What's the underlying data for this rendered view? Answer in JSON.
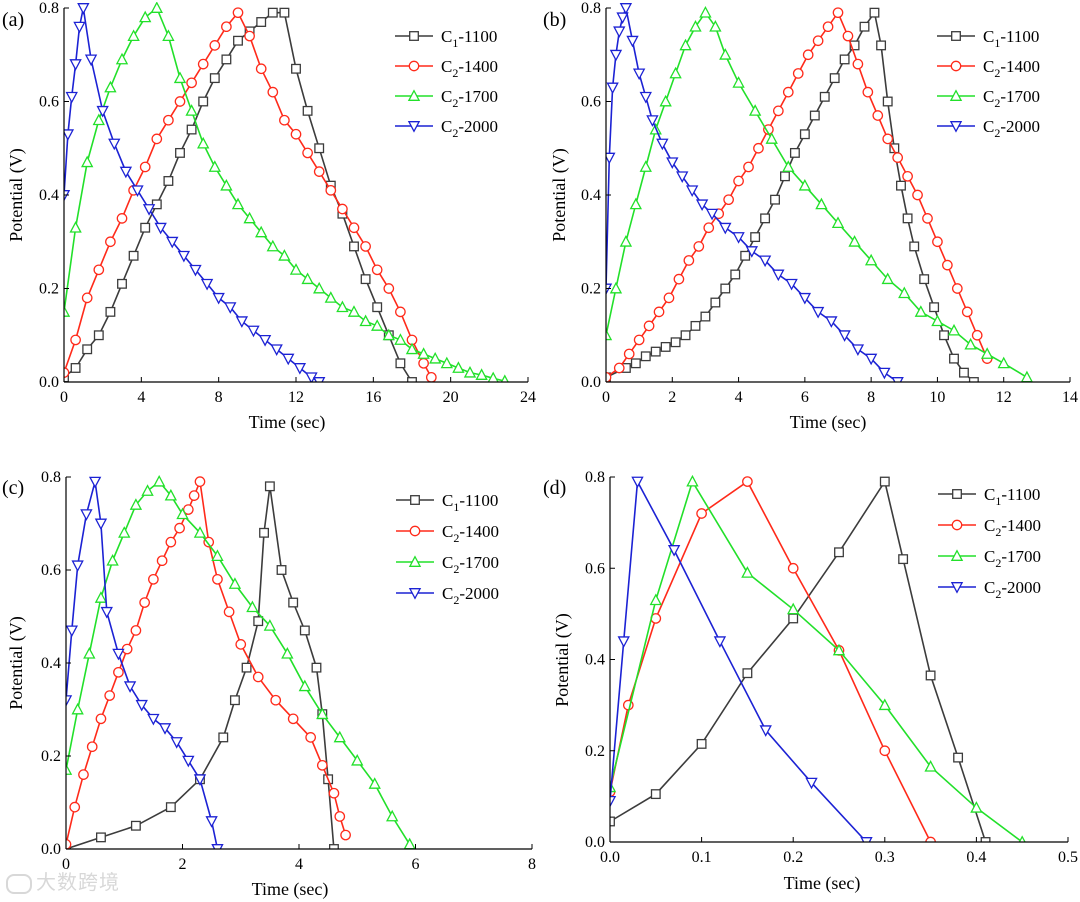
{
  "watermark": "大数跨境",
  "legend_labels": [
    {
      "main": "C",
      "sub": "1",
      "suffix": "-1100"
    },
    {
      "main": "C",
      "sub": "2",
      "suffix": "-1400"
    },
    {
      "main": "C",
      "sub": "2",
      "suffix": "-1700"
    },
    {
      "main": "C",
      "sub": "2",
      "suffix": "-2000"
    }
  ],
  "series_style": [
    {
      "color": "#3c3c3c",
      "marker": "square"
    },
    {
      "color": "#ff2a1a",
      "marker": "circle"
    },
    {
      "color": "#22e02a",
      "marker": "triangle-up"
    },
    {
      "color": "#1c22d4",
      "marker": "triangle-down"
    }
  ],
  "chart_data": [
    {
      "type": "line",
      "panel_label": "(a)",
      "xlabel": "Time (sec)",
      "ylabel": "Potential (V)",
      "xlim": [
        0,
        24
      ],
      "ylim": [
        0,
        0.8
      ],
      "xticks": [
        0,
        4,
        8,
        12,
        16,
        20,
        24
      ],
      "yticks": [
        0.0,
        0.2,
        0.4,
        0.6,
        0.8
      ],
      "xtick_labels": [
        "0",
        "4",
        "8",
        "12",
        "16",
        "20",
        "24"
      ],
      "ytick_labels": [
        "0.0",
        "0.2",
        "0.4",
        "0.6",
        "0.8"
      ],
      "series": [
        {
          "name": "C1-1100",
          "x": [
            0,
            0.6,
            1.2,
            1.8,
            2.4,
            3.0,
            3.6,
            4.2,
            4.8,
            5.4,
            6.0,
            6.6,
            7.2,
            7.8,
            8.4,
            9.0,
            9.6,
            10.2,
            10.8,
            11.4,
            12.0,
            12.6,
            13.2,
            13.8,
            14.4,
            15.0,
            15.6,
            16.2,
            16.8,
            17.4,
            18.0
          ],
          "y": [
            0.01,
            0.03,
            0.07,
            0.1,
            0.15,
            0.21,
            0.27,
            0.33,
            0.38,
            0.43,
            0.49,
            0.54,
            0.6,
            0.65,
            0.69,
            0.73,
            0.75,
            0.77,
            0.79,
            0.79,
            0.67,
            0.58,
            0.5,
            0.42,
            0.36,
            0.29,
            0.22,
            0.16,
            0.1,
            0.04,
            0.0
          ]
        },
        {
          "name": "C2-1400",
          "x": [
            0,
            0.6,
            1.2,
            1.8,
            2.4,
            3.0,
            3.6,
            4.2,
            4.8,
            5.4,
            6.0,
            6.6,
            7.2,
            7.8,
            8.4,
            9.0,
            9.6,
            10.2,
            10.8,
            11.4,
            12.0,
            12.6,
            13.2,
            13.8,
            14.4,
            15.0,
            15.6,
            16.2,
            16.8,
            17.4,
            18.0,
            18.6,
            19.0
          ],
          "y": [
            0.02,
            0.09,
            0.18,
            0.24,
            0.3,
            0.35,
            0.41,
            0.46,
            0.52,
            0.56,
            0.6,
            0.64,
            0.68,
            0.72,
            0.76,
            0.79,
            0.74,
            0.67,
            0.62,
            0.56,
            0.53,
            0.49,
            0.45,
            0.41,
            0.37,
            0.33,
            0.29,
            0.24,
            0.2,
            0.15,
            0.09,
            0.04,
            0.01
          ]
        },
        {
          "name": "C2-1700",
          "x": [
            0,
            0.6,
            1.2,
            1.8,
            2.4,
            3.0,
            3.6,
            4.2,
            4.8,
            5.4,
            6.0,
            6.6,
            7.2,
            7.8,
            8.4,
            9.0,
            9.6,
            10.2,
            10.8,
            11.4,
            12.0,
            12.6,
            13.2,
            13.8,
            14.4,
            15.0,
            15.6,
            16.2,
            16.8,
            17.4,
            18.0,
            18.6,
            19.2,
            19.8,
            20.4,
            21.0,
            21.6,
            22.2,
            22.8
          ],
          "y": [
            0.15,
            0.33,
            0.47,
            0.56,
            0.63,
            0.69,
            0.74,
            0.78,
            0.8,
            0.74,
            0.65,
            0.58,
            0.51,
            0.46,
            0.42,
            0.38,
            0.35,
            0.32,
            0.29,
            0.27,
            0.24,
            0.22,
            0.2,
            0.18,
            0.16,
            0.15,
            0.13,
            0.12,
            0.1,
            0.09,
            0.07,
            0.06,
            0.05,
            0.04,
            0.03,
            0.02,
            0.015,
            0.008,
            0.002
          ]
        },
        {
          "name": "C2-2000",
          "x": [
            0,
            0.2,
            0.4,
            0.6,
            0.8,
            1.0,
            1.4,
            2.0,
            2.6,
            3.2,
            3.8,
            4.4,
            5.0,
            5.6,
            6.2,
            6.8,
            7.4,
            8.0,
            8.6,
            9.2,
            9.8,
            10.4,
            11.0,
            11.6,
            12.2,
            12.8,
            13.2
          ],
          "y": [
            0.4,
            0.53,
            0.61,
            0.68,
            0.76,
            0.8,
            0.69,
            0.58,
            0.51,
            0.45,
            0.41,
            0.37,
            0.33,
            0.3,
            0.27,
            0.24,
            0.21,
            0.18,
            0.16,
            0.13,
            0.11,
            0.09,
            0.07,
            0.05,
            0.03,
            0.01,
            0.0
          ]
        }
      ]
    },
    {
      "type": "line",
      "panel_label": "(b)",
      "xlabel": "Time (sec)",
      "ylabel": "Potential (V)",
      "xlim": [
        0,
        14
      ],
      "ylim": [
        0,
        0.8
      ],
      "xticks": [
        0,
        2,
        4,
        6,
        8,
        10,
        12,
        14
      ],
      "yticks": [
        0.0,
        0.2,
        0.4,
        0.6,
        0.8
      ],
      "xtick_labels": [
        "0",
        "2",
        "4",
        "6",
        "8",
        "10",
        "12",
        "14"
      ],
      "ytick_labels": [
        "0.0",
        "0.2",
        "0.4",
        "0.6",
        "0.8"
      ],
      "series": [
        {
          "name": "C1-1100",
          "x": [
            0,
            0.6,
            0.9,
            1.2,
            1.5,
            1.8,
            2.1,
            2.4,
            2.7,
            3.0,
            3.3,
            3.6,
            3.9,
            4.2,
            4.5,
            4.8,
            5.1,
            5.4,
            5.7,
            6.0,
            6.3,
            6.6,
            6.9,
            7.2,
            7.5,
            7.8,
            8.1,
            8.3,
            8.5,
            8.7,
            8.9,
            9.1,
            9.3,
            9.6,
            9.9,
            10.2,
            10.5,
            10.8,
            11.1
          ],
          "y": [
            0.01,
            0.03,
            0.04,
            0.055,
            0.065,
            0.075,
            0.085,
            0.1,
            0.12,
            0.14,
            0.17,
            0.2,
            0.23,
            0.27,
            0.31,
            0.35,
            0.39,
            0.44,
            0.49,
            0.53,
            0.57,
            0.61,
            0.65,
            0.69,
            0.72,
            0.76,
            0.79,
            0.72,
            0.6,
            0.5,
            0.42,
            0.35,
            0.29,
            0.22,
            0.16,
            0.1,
            0.05,
            0.02,
            0.0
          ]
        },
        {
          "name": "C2-1400",
          "x": [
            0,
            0.4,
            0.7,
            1.0,
            1.3,
            1.6,
            1.9,
            2.2,
            2.5,
            2.8,
            3.1,
            3.4,
            3.7,
            4.0,
            4.3,
            4.6,
            4.9,
            5.2,
            5.5,
            5.8,
            6.1,
            6.4,
            6.7,
            7.0,
            7.3,
            7.6,
            7.9,
            8.2,
            8.5,
            8.8,
            9.1,
            9.4,
            9.7,
            10.0,
            10.3,
            10.6,
            10.9,
            11.2,
            11.5
          ],
          "y": [
            0.01,
            0.03,
            0.06,
            0.09,
            0.12,
            0.15,
            0.18,
            0.22,
            0.26,
            0.29,
            0.33,
            0.36,
            0.39,
            0.43,
            0.46,
            0.5,
            0.54,
            0.58,
            0.62,
            0.66,
            0.7,
            0.73,
            0.76,
            0.79,
            0.74,
            0.68,
            0.62,
            0.57,
            0.52,
            0.48,
            0.44,
            0.4,
            0.35,
            0.3,
            0.25,
            0.2,
            0.15,
            0.1,
            0.05
          ]
        },
        {
          "name": "C2-1700",
          "x": [
            0,
            0.3,
            0.6,
            0.9,
            1.2,
            1.5,
            1.8,
            2.1,
            2.4,
            2.7,
            3.0,
            3.3,
            3.6,
            4.0,
            4.5,
            5.0,
            5.5,
            6.0,
            6.5,
            7.0,
            7.5,
            8.0,
            8.5,
            9.0,
            9.5,
            10.0,
            10.5,
            11.0,
            11.5,
            12.0,
            12.7
          ],
          "y": [
            0.1,
            0.2,
            0.3,
            0.38,
            0.46,
            0.54,
            0.6,
            0.66,
            0.72,
            0.76,
            0.79,
            0.76,
            0.7,
            0.64,
            0.58,
            0.52,
            0.46,
            0.42,
            0.38,
            0.34,
            0.3,
            0.26,
            0.22,
            0.19,
            0.15,
            0.13,
            0.11,
            0.08,
            0.06,
            0.04,
            0.01
          ]
        },
        {
          "name": "C2-2000",
          "x": [
            0,
            0.1,
            0.2,
            0.3,
            0.4,
            0.5,
            0.6,
            0.8,
            1.0,
            1.2,
            1.4,
            1.7,
            2.0,
            2.3,
            2.6,
            2.9,
            3.2,
            3.6,
            4.0,
            4.4,
            4.8,
            5.2,
            5.6,
            6.0,
            6.4,
            6.8,
            7.2,
            7.6,
            8.0,
            8.4,
            8.8
          ],
          "y": [
            0.2,
            0.48,
            0.63,
            0.7,
            0.75,
            0.78,
            0.8,
            0.73,
            0.66,
            0.61,
            0.56,
            0.51,
            0.47,
            0.44,
            0.41,
            0.38,
            0.36,
            0.33,
            0.31,
            0.28,
            0.26,
            0.23,
            0.21,
            0.18,
            0.15,
            0.13,
            0.1,
            0.07,
            0.05,
            0.02,
            0.0
          ]
        }
      ]
    },
    {
      "type": "line",
      "panel_label": "(c)",
      "xlabel": "Time (sec)",
      "ylabel": "Potential (V)",
      "xlim": [
        0,
        8
      ],
      "ylim": [
        0,
        0.8
      ],
      "xticks": [
        0,
        2,
        4,
        6,
        8
      ],
      "yticks": [
        0.0,
        0.2,
        0.4,
        0.6,
        0.8
      ],
      "xtick_labels": [
        "0",
        "2",
        "4",
        "6",
        "8"
      ],
      "ytick_labels": [
        "0.0",
        "0.2",
        "0.4",
        "0.6",
        "0.8"
      ],
      "series": [
        {
          "name": "C1-1100",
          "x": [
            0,
            0.6,
            1.2,
            1.8,
            2.3,
            2.7,
            2.9,
            3.1,
            3.3,
            3.4,
            3.5,
            3.7,
            3.9,
            4.1,
            4.3,
            4.4,
            4.5,
            4.6
          ],
          "y": [
            0.0,
            0.025,
            0.05,
            0.09,
            0.15,
            0.24,
            0.32,
            0.39,
            0.49,
            0.68,
            0.78,
            0.6,
            0.53,
            0.47,
            0.39,
            0.29,
            0.15,
            0.0
          ]
        },
        {
          "name": "C2-1400",
          "x": [
            0,
            0.15,
            0.3,
            0.45,
            0.6,
            0.75,
            0.9,
            1.05,
            1.2,
            1.35,
            1.5,
            1.65,
            1.8,
            1.95,
            2.1,
            2.2,
            2.3,
            2.45,
            2.6,
            2.8,
            3.0,
            3.3,
            3.6,
            3.9,
            4.2,
            4.4,
            4.6,
            4.7,
            4.8
          ],
          "y": [
            0.01,
            0.09,
            0.16,
            0.22,
            0.28,
            0.33,
            0.38,
            0.43,
            0.47,
            0.53,
            0.58,
            0.62,
            0.66,
            0.69,
            0.73,
            0.76,
            0.79,
            0.66,
            0.58,
            0.51,
            0.44,
            0.37,
            0.32,
            0.28,
            0.24,
            0.18,
            0.12,
            0.07,
            0.03
          ]
        },
        {
          "name": "C2-1700",
          "x": [
            0,
            0.2,
            0.4,
            0.6,
            0.8,
            1.0,
            1.2,
            1.4,
            1.6,
            1.8,
            2.0,
            2.3,
            2.6,
            2.9,
            3.2,
            3.5,
            3.8,
            4.1,
            4.4,
            4.7,
            5.0,
            5.3,
            5.6,
            5.9
          ],
          "y": [
            0.17,
            0.3,
            0.42,
            0.54,
            0.62,
            0.68,
            0.74,
            0.77,
            0.79,
            0.76,
            0.72,
            0.68,
            0.63,
            0.57,
            0.52,
            0.48,
            0.42,
            0.35,
            0.29,
            0.24,
            0.19,
            0.14,
            0.07,
            0.01
          ]
        },
        {
          "name": "C2-2000",
          "x": [
            0,
            0.1,
            0.2,
            0.35,
            0.5,
            0.6,
            0.7,
            0.9,
            1.1,
            1.3,
            1.5,
            1.7,
            1.9,
            2.1,
            2.3,
            2.5,
            2.6
          ],
          "y": [
            0.32,
            0.47,
            0.61,
            0.72,
            0.79,
            0.7,
            0.51,
            0.42,
            0.35,
            0.31,
            0.28,
            0.26,
            0.23,
            0.19,
            0.15,
            0.06,
            0.0
          ]
        }
      ]
    },
    {
      "type": "line",
      "panel_label": "(d)",
      "xlabel": "Time (sec)",
      "ylabel": "Potential (V)",
      "xlim": [
        0,
        0.5
      ],
      "ylim": [
        0,
        0.8
      ],
      "xticks": [
        0.0,
        0.1,
        0.2,
        0.3,
        0.4,
        0.5
      ],
      "yticks": [
        0.0,
        0.2,
        0.4,
        0.6,
        0.8
      ],
      "xtick_labels": [
        "0.0",
        "0.1",
        "0.2",
        "0.3",
        "0.4",
        "0.5"
      ],
      "ytick_labels": [
        "0.0",
        "0.2",
        "0.4",
        "0.6",
        "0.8"
      ],
      "series": [
        {
          "name": "C1-1100",
          "x": [
            0,
            0.05,
            0.1,
            0.15,
            0.2,
            0.25,
            0.3,
            0.32,
            0.35,
            0.38,
            0.41
          ],
          "y": [
            0.045,
            0.105,
            0.215,
            0.37,
            0.49,
            0.635,
            0.79,
            0.62,
            0.365,
            0.185,
            0.0
          ]
        },
        {
          "name": "C2-1400",
          "x": [
            0,
            0.02,
            0.05,
            0.1,
            0.15,
            0.2,
            0.25,
            0.3,
            0.35
          ],
          "y": [
            0.11,
            0.3,
            0.49,
            0.72,
            0.79,
            0.6,
            0.42,
            0.2,
            0.0
          ]
        },
        {
          "name": "C2-1700",
          "x": [
            0,
            0.05,
            0.09,
            0.15,
            0.2,
            0.25,
            0.3,
            0.35,
            0.4,
            0.45
          ],
          "y": [
            0.12,
            0.53,
            0.79,
            0.59,
            0.51,
            0.42,
            0.3,
            0.165,
            0.075,
            0.0
          ]
        },
        {
          "name": "C2-2000",
          "x": [
            0,
            0.015,
            0.03,
            0.07,
            0.12,
            0.17,
            0.22,
            0.28
          ],
          "y": [
            0.09,
            0.44,
            0.79,
            0.64,
            0.44,
            0.245,
            0.13,
            0.0
          ]
        }
      ]
    }
  ]
}
